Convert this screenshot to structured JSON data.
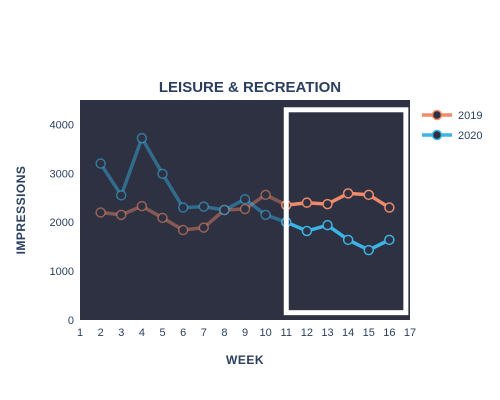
{
  "chart_data": {
    "type": "line",
    "title": "LEISURE & RECREATION",
    "xlabel": "WEEK",
    "ylabel": "IMPRESSIONS",
    "xlim": [
      1,
      17
    ],
    "ylim": [
      0,
      4500
    ],
    "xticks": [
      1,
      2,
      3,
      4,
      5,
      6,
      7,
      8,
      9,
      10,
      11,
      12,
      13,
      14,
      15,
      16,
      17
    ],
    "yticks": [
      0,
      1000,
      2000,
      3000,
      4000
    ],
    "grid": false,
    "legend_position": "top-right",
    "highlight_range": {
      "x_start": 11,
      "x_end": 16.8,
      "y_start": 150,
      "y_end": 4300
    },
    "highlight_from_week": 11,
    "background_color": "#2d3142",
    "series": [
      {
        "name": "2019",
        "color": "#f08a6a",
        "x": [
          2,
          3,
          4,
          5,
          6,
          7,
          8,
          9,
          10,
          11,
          12,
          13,
          14,
          15,
          16
        ],
        "values": [
          2200,
          2150,
          2330,
          2090,
          1840,
          1890,
          2250,
          2270,
          2560,
          2350,
          2400,
          2370,
          2590,
          2560,
          2300
        ]
      },
      {
        "name": "2020",
        "color": "#3cb4e6",
        "x": [
          2,
          3,
          4,
          5,
          6,
          7,
          8,
          9,
          10,
          11,
          12,
          13,
          14,
          15,
          16
        ],
        "values": [
          3200,
          2550,
          3720,
          2990,
          2300,
          2320,
          2250,
          2470,
          2150,
          2000,
          1820,
          1940,
          1640,
          1430,
          1640
        ]
      }
    ]
  }
}
